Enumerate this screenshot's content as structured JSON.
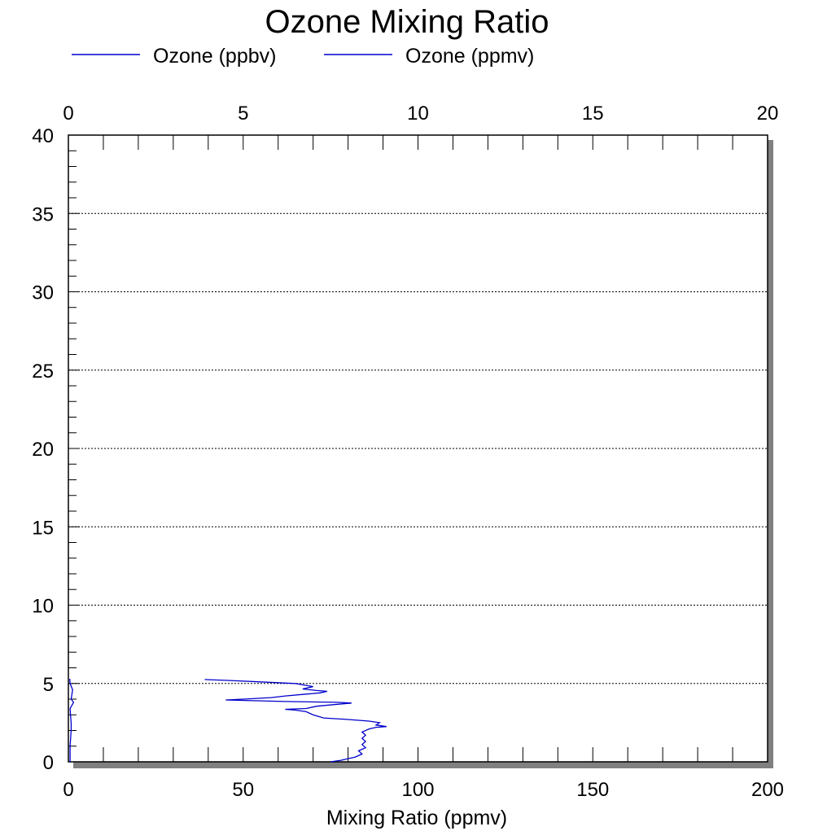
{
  "chart_data": {
    "type": "line",
    "title": "Ozone Mixing Ratio",
    "xlabel": "Mixing Ratio (ppmv)",
    "ylabel": "",
    "x_bottom": {
      "lim": [
        0,
        200
      ],
      "ticks": [
        "0",
        "50",
        "100",
        "150",
        "200"
      ]
    },
    "x_top": {
      "lim": [
        0,
        20
      ],
      "ticks": [
        "0",
        "5",
        "10",
        "15",
        "20"
      ]
    },
    "y": {
      "lim": [
        0,
        40
      ],
      "ticks": [
        "0",
        "5",
        "10",
        "15",
        "20",
        "25",
        "30",
        "35",
        "40"
      ]
    },
    "grid": "horizontal dotted at y = 5, 10, 15, 20, 25, 30, 35",
    "legend_position": "top-left",
    "series": [
      {
        "name": "Ozone (ppbv)",
        "color": "#0000cc",
        "axis": "bottom",
        "points": [
          [
            75,
            0.0
          ],
          [
            78,
            0.1
          ],
          [
            80,
            0.2
          ],
          [
            82,
            0.3
          ],
          [
            84,
            0.5
          ],
          [
            83,
            0.7
          ],
          [
            85,
            0.9
          ],
          [
            84,
            1.1
          ],
          [
            85,
            1.3
          ],
          [
            84,
            1.5
          ],
          [
            85,
            1.7
          ],
          [
            84,
            1.9
          ],
          [
            86,
            2.1
          ],
          [
            88,
            2.2
          ],
          [
            91,
            2.25
          ],
          [
            88,
            2.35
          ],
          [
            89,
            2.5
          ],
          [
            86,
            2.6
          ],
          [
            80,
            2.7
          ],
          [
            73,
            2.8
          ],
          [
            70,
            3.0
          ],
          [
            68,
            3.2
          ],
          [
            65,
            3.3
          ],
          [
            62,
            3.35
          ],
          [
            68,
            3.4
          ],
          [
            71,
            3.55
          ],
          [
            76,
            3.65
          ],
          [
            81,
            3.75
          ],
          [
            77,
            3.8
          ],
          [
            62,
            3.85
          ],
          [
            45,
            3.95
          ],
          [
            50,
            4.0
          ],
          [
            58,
            4.1
          ],
          [
            62,
            4.2
          ],
          [
            67,
            4.3
          ],
          [
            72,
            4.4
          ],
          [
            74,
            4.5
          ],
          [
            71,
            4.55
          ],
          [
            67,
            4.65
          ],
          [
            70,
            4.8
          ],
          [
            65,
            5.0
          ],
          [
            55,
            5.1
          ],
          [
            45,
            5.2
          ],
          [
            39,
            5.25
          ]
        ]
      },
      {
        "name": "Ozone (ppmv)",
        "color": "#0000cc",
        "axis": "top",
        "points": [
          [
            0.05,
            0.0
          ],
          [
            0.05,
            1.0
          ],
          [
            0.08,
            2.0
          ],
          [
            0.08,
            2.5
          ],
          [
            0.06,
            3.0
          ],
          [
            0.05,
            3.4
          ],
          [
            0.15,
            3.8
          ],
          [
            0.08,
            4.0
          ],
          [
            0.12,
            4.6
          ],
          [
            0.05,
            5.0
          ],
          [
            0.04,
            5.3
          ]
        ]
      }
    ]
  }
}
